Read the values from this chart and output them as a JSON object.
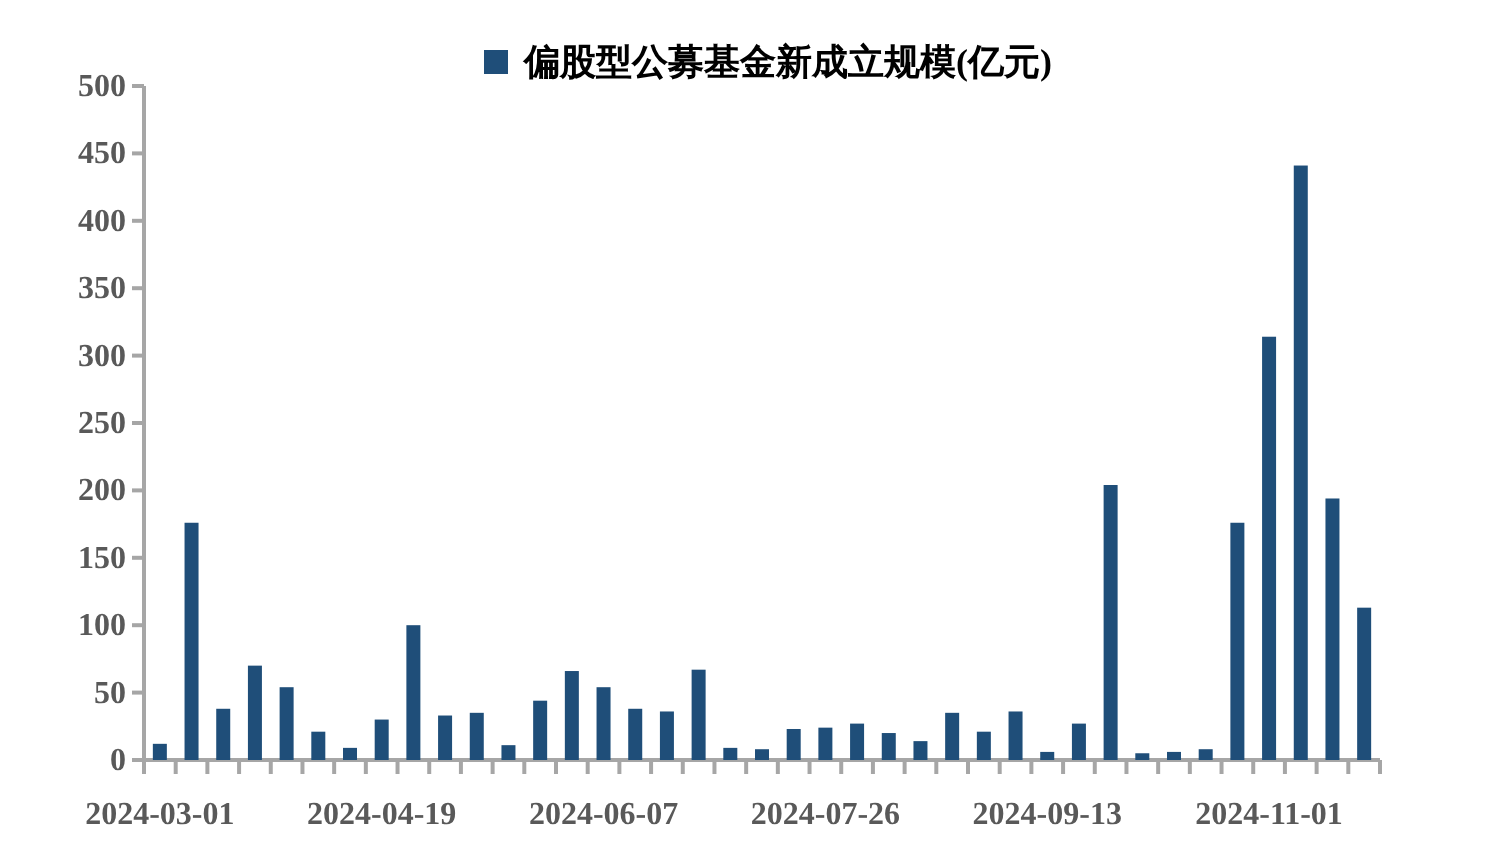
{
  "chart_data": {
    "type": "bar",
    "categories": [
      "2024-03-01",
      null,
      null,
      null,
      null,
      null,
      null,
      "2024-04-19",
      null,
      null,
      null,
      null,
      null,
      null,
      "2024-06-07",
      null,
      null,
      null,
      null,
      null,
      null,
      "2024-07-26",
      null,
      null,
      null,
      null,
      null,
      null,
      "2024-09-13",
      null,
      null,
      null,
      null,
      null,
      null,
      "2024-11-01",
      null,
      null,
      null
    ],
    "series": [
      {
        "name": "偏股型公募基金新成立规模(亿元)",
        "color": "#1f4e79",
        "values": [
          12,
          176,
          38,
          70,
          54,
          21,
          9,
          30,
          100,
          33,
          35,
          11,
          44,
          66,
          54,
          38,
          36,
          67,
          9,
          8,
          23,
          24,
          27,
          20,
          14,
          35,
          21,
          36,
          6,
          27,
          204,
          5,
          6,
          8,
          176,
          314,
          441,
          194,
          113
        ]
      }
    ],
    "ylim": [
      0,
      500
    ],
    "yticks": [
      0,
      50,
      100,
      150,
      200,
      250,
      300,
      350,
      400,
      450,
      500
    ],
    "grid": false,
    "legend": "top"
  }
}
